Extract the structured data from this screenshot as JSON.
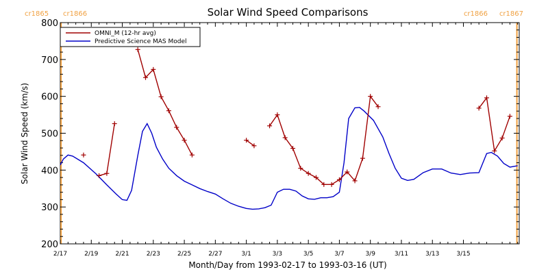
{
  "chart_data": {
    "type": "line",
    "title": "Solar Wind Speed Comparisons",
    "xlabel": "Month/Day from 1993-02-17 to 1993-03-16 (UT)",
    "ylabel": "Solar Wind Speed (km/s)",
    "xlim": [
      0,
      29.6
    ],
    "ylim": [
      200,
      800
    ],
    "x_ticks": [
      {
        "x": 0,
        "label": "2/17"
      },
      {
        "x": 2,
        "label": "2/19"
      },
      {
        "x": 4,
        "label": "2/21"
      },
      {
        "x": 6,
        "label": "2/23"
      },
      {
        "x": 8,
        "label": "2/25"
      },
      {
        "x": 10,
        "label": "2/27"
      },
      {
        "x": 12,
        "label": "3/1"
      },
      {
        "x": 14,
        "label": "3/3"
      },
      {
        "x": 16,
        "label": "3/5"
      },
      {
        "x": 18,
        "label": "3/7"
      },
      {
        "x": 20,
        "label": "3/9"
      },
      {
        "x": 22,
        "label": "3/11"
      },
      {
        "x": 24,
        "label": "3/13"
      },
      {
        "x": 26,
        "label": "3/15"
      }
    ],
    "y_ticks": [
      200,
      300,
      400,
      500,
      600,
      700,
      800
    ],
    "legend_position": "top-left",
    "legend": [
      {
        "label": "OMNI_M (12-hr avg)",
        "color": "#a00000"
      },
      {
        "label": "Predictive Science MAS Model",
        "color": "#0000c8"
      }
    ],
    "carrington_markers": [
      {
        "x": 0.05,
        "labels": [
          "cr1865",
          "cr1866"
        ],
        "color": "#f0a040"
      },
      {
        "x": 29.45,
        "labels": [
          "cr1866",
          "cr1867"
        ],
        "color": "#f0a040"
      }
    ],
    "series": [
      {
        "name": "OMNI_M (12-hr avg)",
        "color": "#a00000",
        "marker": "plus",
        "segments": [
          [
            [
              1.5,
              441
            ]
          ],
          [
            [
              2.5,
              385
            ],
            [
              3.0,
              391
            ],
            [
              3.5,
              526
            ]
          ],
          [
            [
              5.0,
              727
            ],
            [
              5.5,
              651
            ],
            [
              6.0,
              673
            ],
            [
              6.5,
              599
            ],
            [
              7.0,
              561
            ],
            [
              7.5,
              516
            ],
            [
              8.0,
              481
            ],
            [
              8.5,
              441
            ]
          ],
          [
            [
              12.0,
              481
            ],
            [
              12.5,
              466
            ]
          ],
          [
            [
              13.5,
              520
            ],
            [
              14.0,
              550
            ],
            [
              14.5,
              488
            ],
            [
              15.0,
              459
            ],
            [
              15.5,
              405
            ],
            [
              16.0,
              391
            ],
            [
              16.5,
              380
            ],
            [
              17.0,
              361
            ],
            [
              17.5,
              361
            ],
            [
              18.0,
              374
            ],
            [
              18.5,
              395
            ],
            [
              19.0,
              371
            ],
            [
              19.5,
              432
            ],
            [
              20.0,
              600
            ],
            [
              20.5,
              572
            ]
          ],
          [
            [
              27.0,
              568
            ],
            [
              27.5,
              596
            ],
            [
              28.0,
              452
            ],
            [
              28.5,
              487
            ],
            [
              29.0,
              546
            ]
          ]
        ]
      },
      {
        "name": "Predictive Science MAS Model",
        "color": "#0000c8",
        "marker": "none",
        "points": [
          [
            0.0,
            414
          ],
          [
            0.2,
            430
          ],
          [
            0.5,
            441
          ],
          [
            0.8,
            438
          ],
          [
            1.5,
            420
          ],
          [
            2.3,
            390
          ],
          [
            3.0,
            360
          ],
          [
            3.6,
            335
          ],
          [
            4.0,
            320
          ],
          [
            4.3,
            318
          ],
          [
            4.6,
            345
          ],
          [
            5.0,
            440
          ],
          [
            5.3,
            505
          ],
          [
            5.6,
            526
          ],
          [
            5.9,
            500
          ],
          [
            6.2,
            462
          ],
          [
            6.6,
            430
          ],
          [
            7.0,
            405
          ],
          [
            7.5,
            385
          ],
          [
            8.0,
            370
          ],
          [
            8.5,
            360
          ],
          [
            9.0,
            350
          ],
          [
            9.5,
            342
          ],
          [
            10.0,
            335
          ],
          [
            10.5,
            322
          ],
          [
            11.0,
            310
          ],
          [
            11.5,
            302
          ],
          [
            12.0,
            296
          ],
          [
            12.4,
            294
          ],
          [
            12.8,
            295
          ],
          [
            13.2,
            298
          ],
          [
            13.6,
            305
          ],
          [
            14.0,
            340
          ],
          [
            14.4,
            348
          ],
          [
            14.8,
            348
          ],
          [
            15.2,
            343
          ],
          [
            15.6,
            330
          ],
          [
            16.0,
            322
          ],
          [
            16.4,
            321
          ],
          [
            16.8,
            325
          ],
          [
            17.2,
            325
          ],
          [
            17.6,
            328
          ],
          [
            18.0,
            340
          ],
          [
            18.3,
            420
          ],
          [
            18.6,
            540
          ],
          [
            19.0,
            569
          ],
          [
            19.3,
            570
          ],
          [
            19.6,
            560
          ],
          [
            20.2,
            535
          ],
          [
            20.8,
            490
          ],
          [
            21.2,
            445
          ],
          [
            21.6,
            405
          ],
          [
            22.0,
            378
          ],
          [
            22.4,
            372
          ],
          [
            22.8,
            375
          ],
          [
            23.4,
            393
          ],
          [
            24.0,
            403
          ],
          [
            24.6,
            403
          ],
          [
            25.2,
            392
          ],
          [
            25.8,
            388
          ],
          [
            26.4,
            392
          ],
          [
            27.0,
            393
          ],
          [
            27.5,
            445
          ],
          [
            27.8,
            448
          ],
          [
            28.2,
            438
          ],
          [
            28.6,
            418
          ],
          [
            29.0,
            408
          ],
          [
            29.5,
            412
          ]
        ]
      }
    ]
  }
}
